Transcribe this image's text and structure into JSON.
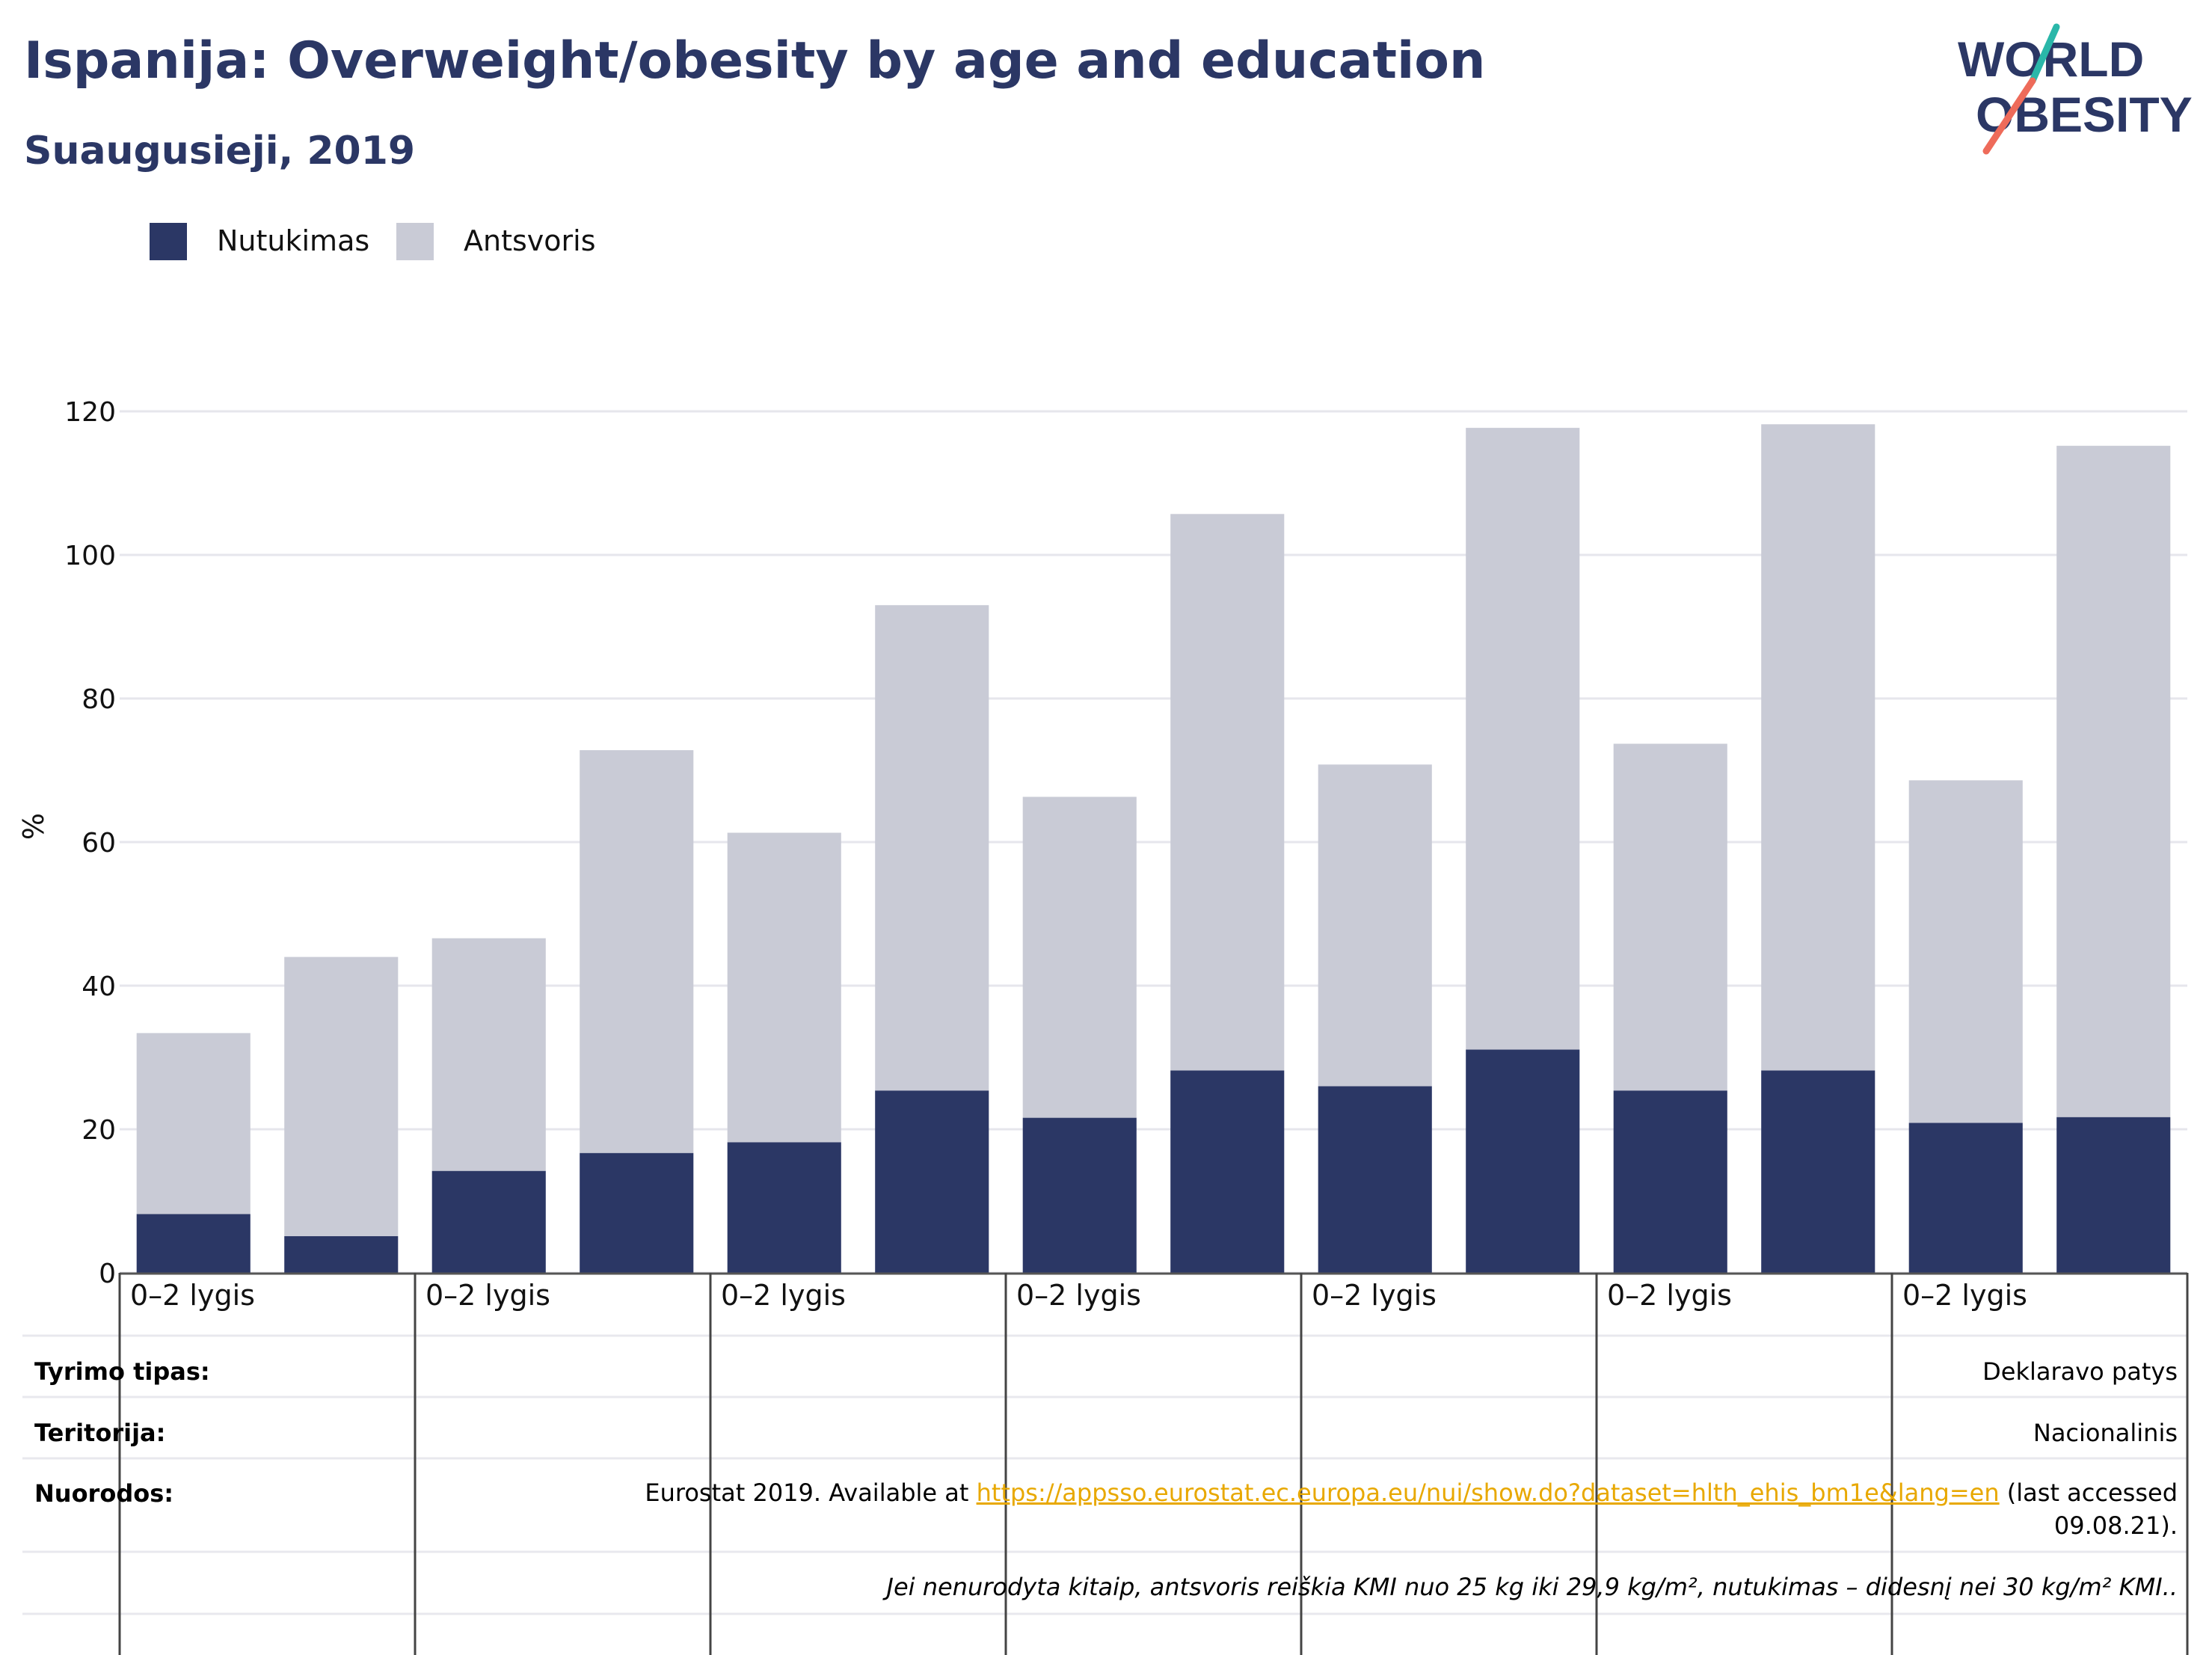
{
  "header": {
    "title": "Ispanija: Overweight/obesity by age and education",
    "subtitle": "Suaugusieji, 2019"
  },
  "logo": {
    "line1": "WORLD",
    "line2": "OBESITY"
  },
  "colors": {
    "obesity": "#2b3765",
    "overweight": "#c9cbd6",
    "title": "#2b3765",
    "link": "#e8a800"
  },
  "chart_data": {
    "type": "bar",
    "stacked": true,
    "ylabel": "%",
    "ylim": [
      0,
      120
    ],
    "yticks": [
      0,
      20,
      40,
      60,
      80,
      100,
      120
    ],
    "grid": true,
    "legend_position": "top-left",
    "group_labels": [
      "0–2 lygis",
      "0–2 lygis",
      "0–2 lygis",
      "0–2 lygis",
      "0–2 lygis",
      "0–2 lygis",
      "0–2 lygis"
    ],
    "bars_per_group": 2,
    "series": [
      {
        "name": "Nutukimas",
        "values": [
          8.2,
          5.1,
          14.2,
          16.7,
          18.2,
          25.4,
          21.6,
          28.2,
          26.0,
          31.1,
          25.4,
          28.2,
          20.9,
          21.7
        ]
      },
      {
        "name": "Antsvoris",
        "values": [
          25.2,
          38.9,
          32.4,
          56.1,
          43.1,
          67.6,
          44.7,
          77.5,
          44.8,
          86.6,
          48.3,
          90.0,
          47.7,
          93.5
        ]
      }
    ]
  },
  "table": {
    "rows": [
      {
        "label": "Tyrimo tipas:",
        "value": "Deklaravo patys"
      },
      {
        "label": "Teritorija:",
        "value": "Nacionalinis"
      }
    ],
    "sources": {
      "label": "Nuorodos:",
      "before": "Eurostat 2019. Available at ",
      "link": "https://appsso.eurostat.ec.europa.eu/nui/show.do?dataset=hlth_ehis_bm1e&lang=en",
      "after": " (last accessed 09.08.21)."
    },
    "note": "Jei nenurodyta kitaip, antsvoris reiškia KMI nuo 25 kg iki 29,9 kg/m², nutukimas – didesnį nei 30 kg/m² KMI.."
  }
}
